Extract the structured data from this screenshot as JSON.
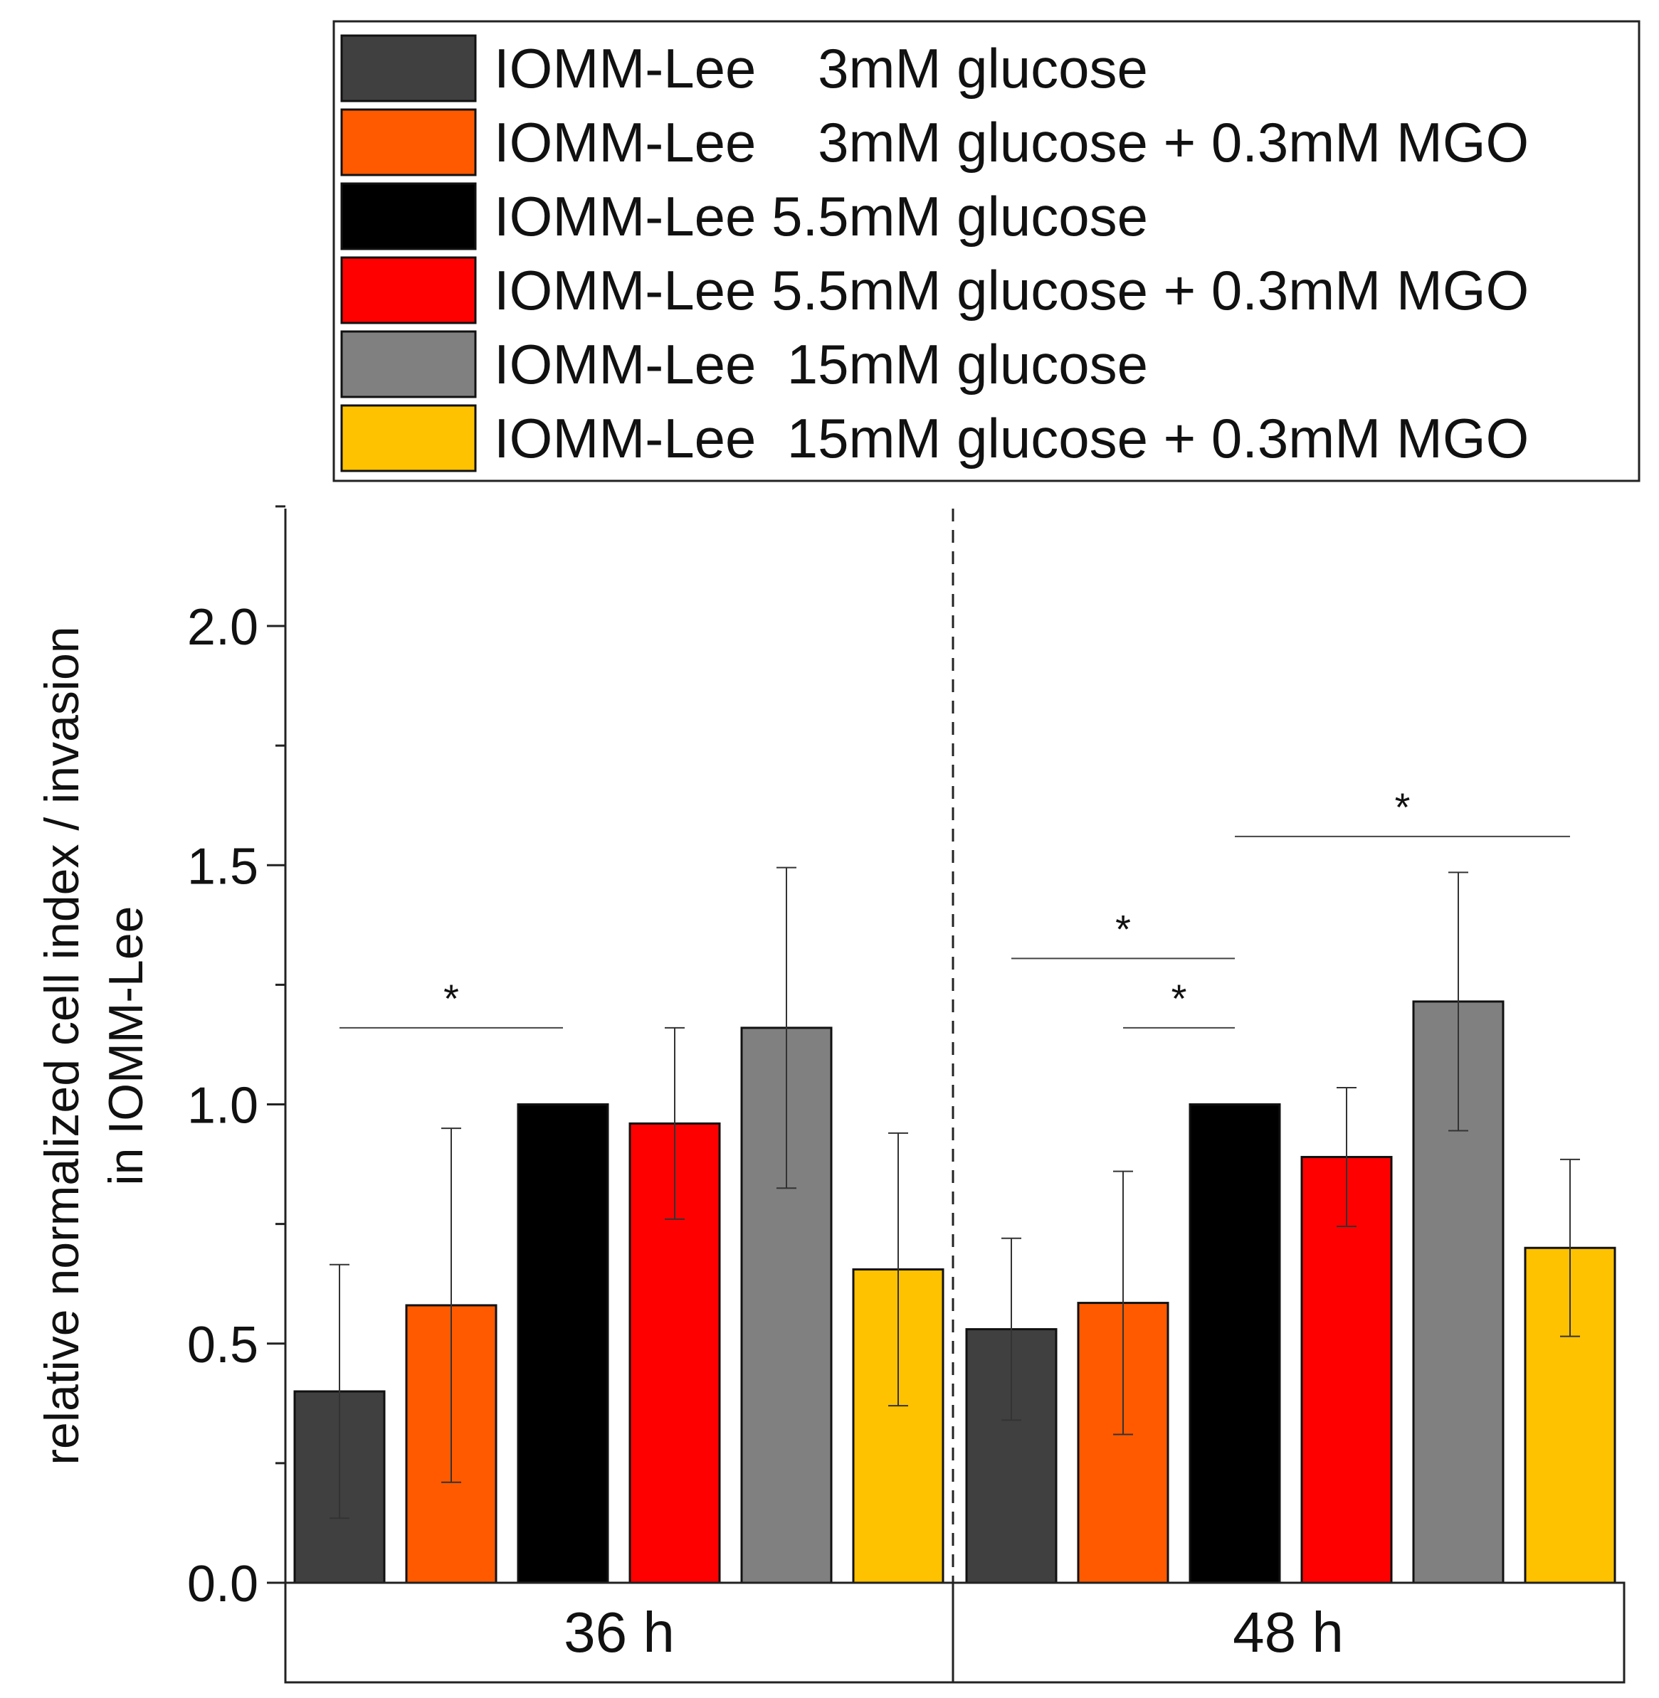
{
  "chart_data": {
    "type": "bar",
    "ylabel_line1": "relative normalized cell index / invasion",
    "ylabel_line2": "in IOMM-Lee",
    "ylim": [
      0,
      2.25
    ],
    "yticks": [
      {
        "value": 0.0,
        "label": "0.0"
      },
      {
        "value": 0.5,
        "label": "0.5"
      },
      {
        "value": 1.0,
        "label": "1.0"
      },
      {
        "value": 1.5,
        "label": "1.5"
      },
      {
        "value": 2.0,
        "label": "2.0"
      }
    ],
    "minor_yticks": [
      0.25,
      0.75,
      1.25,
      1.75,
      2.25
    ],
    "groups": [
      "36 h",
      "48 h"
    ],
    "legend_position": "top",
    "series": [
      {
        "name": "IOMM-Lee    3mM glucose",
        "color": "#404040",
        "values": [
          0.4,
          0.53
        ],
        "errors": [
          0.265,
          0.19
        ]
      },
      {
        "name": "IOMM-Lee    3mM glucose + 0.3mM MGO",
        "color": "#ff5a00",
        "values": [
          0.58,
          0.585
        ],
        "errors": [
          0.37,
          0.275
        ]
      },
      {
        "name": "IOMM-Lee 5.5mM glucose",
        "color": "#000000",
        "values": [
          1.0,
          1.0
        ],
        "errors": [
          0,
          0
        ]
      },
      {
        "name": "IOMM-Lee 5.5mM glucose + 0.3mM MGO",
        "color": "#ff0000",
        "values": [
          0.96,
          0.89
        ],
        "errors": [
          0.2,
          0.145
        ]
      },
      {
        "name": "IOMM-Lee  15mM glucose",
        "color": "#808080",
        "values": [
          1.16,
          1.215
        ],
        "errors": [
          0.335,
          0.27
        ]
      },
      {
        "name": "IOMM-Lee  15mM glucose + 0.3mM MGO",
        "color": "#ffc200",
        "values": [
          0.655,
          0.7
        ],
        "errors": [
          0.285,
          0.185
        ]
      }
    ],
    "significance": [
      {
        "group": 0,
        "from_series": 0,
        "to_series": 2,
        "y": 1.16,
        "label": "*"
      },
      {
        "group": 1,
        "from_series": 0,
        "to_series": 2,
        "y": 1.305,
        "label": "*"
      },
      {
        "group": 1,
        "from_series": 1,
        "to_series": 2,
        "y": 1.16,
        "label": "*"
      },
      {
        "group": 1,
        "from_series": 2,
        "to_series": 5,
        "y": 1.56,
        "label": "*"
      }
    ]
  }
}
